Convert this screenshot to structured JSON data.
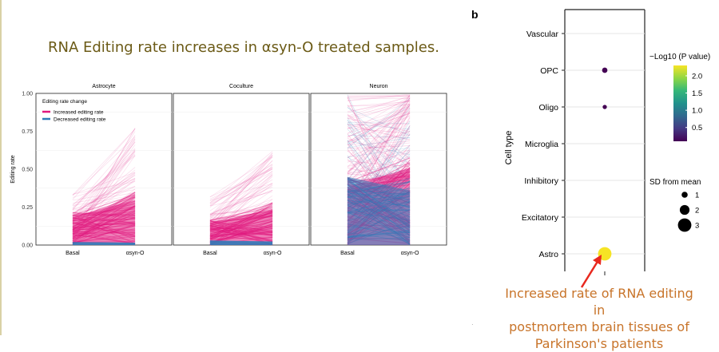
{
  "slide": {
    "title": "RNA Editing rate increases in αsyn-O treated samples.",
    "small_mark": "·",
    "annotation_lines": [
      "Increased rate of RNA editing in",
      "postmortem brain tissues of",
      "Parkinson's patients"
    ],
    "colors": {
      "title": "#6b5a16",
      "annotation": "#c8742a",
      "arrow": "#e8281e"
    }
  },
  "chart_data": [
    {
      "type": "line",
      "facets": [
        "Astrocyte",
        "Coculture",
        "Neuron"
      ],
      "x_categories": [
        "Basal",
        "αsyn-O"
      ],
      "ylabel": "Editing rate",
      "ylim": [
        0,
        1.0
      ],
      "yticks": [
        "0.00",
        "0.25",
        "0.50",
        "0.75",
        "1.00"
      ],
      "grid": true,
      "legend": {
        "title": "Editing rate change",
        "placement": "top-left",
        "entries": [
          {
            "label": "Increased editing rate",
            "color": "#e0177d"
          },
          {
            "label": "Decreased editing rate",
            "color": "#2f7bb8"
          }
        ]
      },
      "panels": [
        {
          "name": "Astrocyte",
          "basal_max": 0.35,
          "asyn_max": 0.78,
          "dense_basal_max": 0.22,
          "dense_asyn_max": 0.35,
          "decreased_max": 0.02
        },
        {
          "name": "Coculture",
          "basal_max": 0.33,
          "asyn_max": 0.62,
          "dense_basal_max": 0.17,
          "dense_asyn_max": 0.28,
          "decreased_max": 0.03
        },
        {
          "name": "Neuron",
          "basal_max": 1.0,
          "asyn_max": 1.0,
          "dense_basal_max": 0.45,
          "dense_asyn_max": 0.6,
          "decreased_max": 0.45
        }
      ]
    },
    {
      "type": "scatter",
      "panel_label": "b",
      "ylabel": "Cell type",
      "categories": [
        "Vascular",
        "OPC",
        "Oligo",
        "Microglia",
        "Inhibitory",
        "Excitatory",
        "Astro"
      ],
      "points": [
        {
          "category": "OPC",
          "neg_log10_p": 0.1,
          "sd_from_mean": 0.8
        },
        {
          "category": "Oligo",
          "neg_log10_p": 0.1,
          "sd_from_mean": 0.5
        },
        {
          "category": "Astro",
          "neg_log10_p": 2.25,
          "sd_from_mean": 3.0
        }
      ],
      "color_legend": {
        "title": "−Log10 (P value)",
        "ticks": [
          "2.0",
          "1.5",
          "1.0",
          "0.5"
        ],
        "range": [
          0.1,
          2.3
        ]
      },
      "size_legend": {
        "title": "SD from mean",
        "values": [
          "1",
          "2",
          "3"
        ]
      }
    }
  ]
}
